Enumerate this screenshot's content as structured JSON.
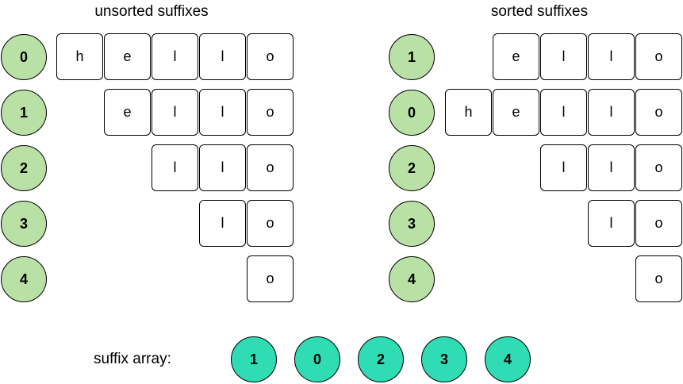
{
  "colors": {
    "index_circle_fill": "#b9e0a5",
    "suffix_array_fill": "#2fdcb4",
    "box_border": "#000000"
  },
  "unsorted": {
    "title": "unsorted suffixes",
    "rows": [
      {
        "index": "0",
        "chars": [
          "h",
          "e",
          "l",
          "l",
          "o"
        ]
      },
      {
        "index": "1",
        "chars": [
          "e",
          "l",
          "l",
          "o"
        ]
      },
      {
        "index": "2",
        "chars": [
          "l",
          "l",
          "o"
        ]
      },
      {
        "index": "3",
        "chars": [
          "l",
          "o"
        ]
      },
      {
        "index": "4",
        "chars": [
          "o"
        ]
      }
    ]
  },
  "sorted": {
    "title": "sorted suffixes",
    "rows": [
      {
        "index": "1",
        "chars": [
          "e",
          "l",
          "l",
          "o"
        ]
      },
      {
        "index": "0",
        "chars": [
          "h",
          "e",
          "l",
          "l",
          "o"
        ]
      },
      {
        "index": "2",
        "chars": [
          "l",
          "l",
          "o"
        ]
      },
      {
        "index": "3",
        "chars": [
          "l",
          "o"
        ]
      },
      {
        "index": "4",
        "chars": [
          "o"
        ]
      }
    ]
  },
  "suffix_array": {
    "label": "suffix array:",
    "values": [
      "1",
      "0",
      "2",
      "3",
      "4"
    ]
  }
}
